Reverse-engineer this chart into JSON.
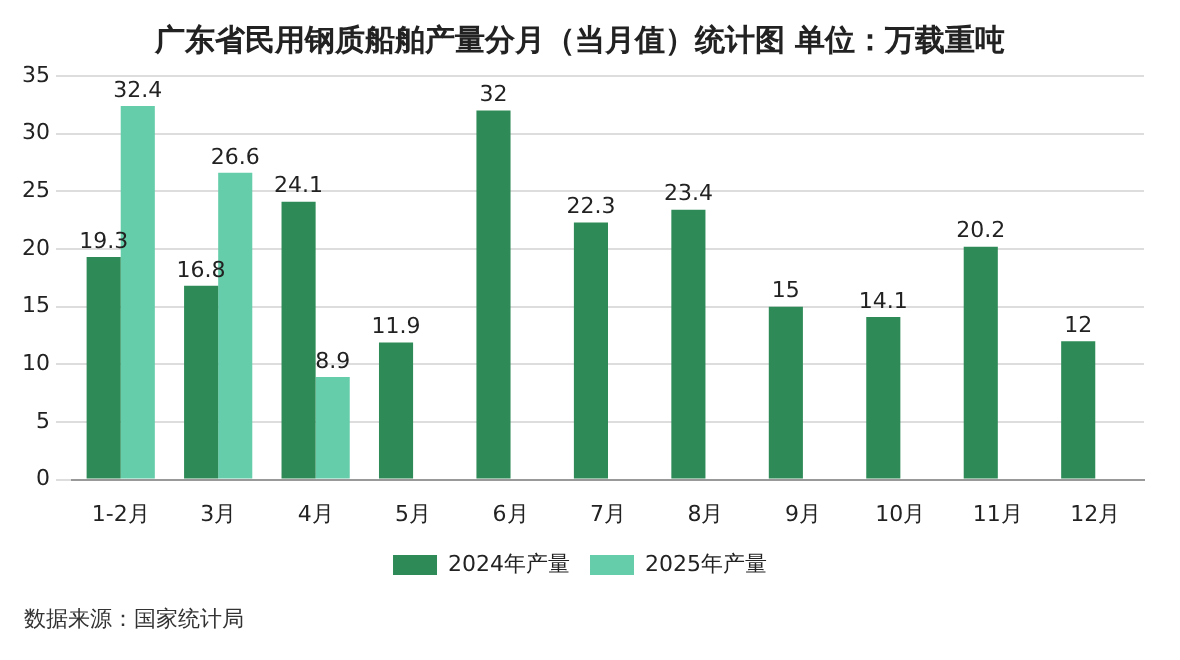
{
  "chart_data": {
    "type": "bar",
    "title": "广东省民用钢质船舶产量分月（当月值）统计图 单位：万载重吨",
    "categories": [
      "1-2月",
      "3月",
      "4月",
      "5月",
      "6月",
      "7月",
      "8月",
      "9月",
      "10月",
      "11月",
      "12月"
    ],
    "series": [
      {
        "name": "2024年产量",
        "color": "#2e8b57",
        "values": [
          19.3,
          16.8,
          24.1,
          11.9,
          32,
          22.3,
          23.4,
          15,
          14.1,
          20.2,
          12
        ]
      },
      {
        "name": "2025年产量",
        "color": "#66cdaa",
        "values": [
          32.4,
          26.6,
          8.9,
          null,
          null,
          null,
          null,
          null,
          null,
          null,
          null
        ]
      }
    ],
    "ylim": [
      0,
      35
    ],
    "yticks": [
      0,
      5,
      10,
      15,
      20,
      25,
      30,
      35
    ],
    "grid": "y",
    "legend": "bottom",
    "data_labels": true,
    "annotations": [
      "数据来源：国家统计局"
    ]
  }
}
